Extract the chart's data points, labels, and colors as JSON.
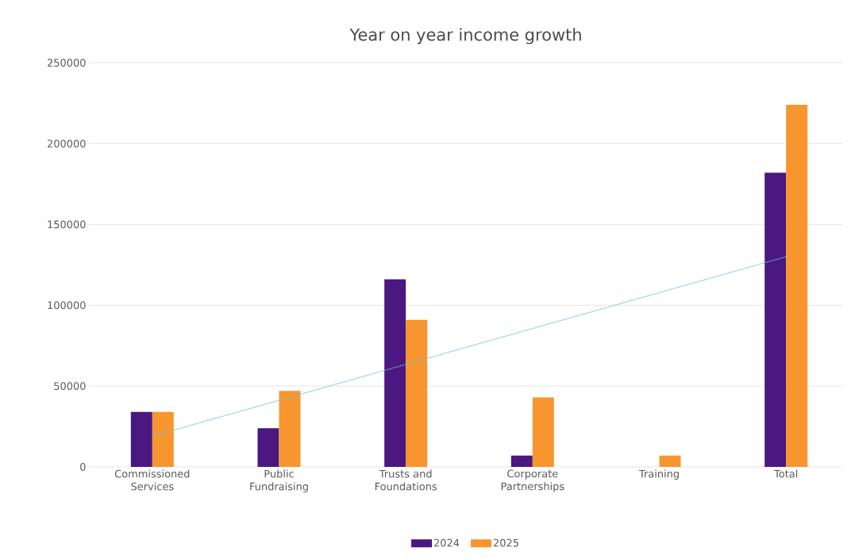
{
  "chart_data": {
    "type": "bar",
    "title": "Year on year income growth",
    "categories": [
      "Commissioned Services",
      "Public Fundraising",
      "Trusts and Foundations",
      "Corporate Partnerships",
      "Training",
      "Total"
    ],
    "series": [
      {
        "name": "2024",
        "color": "#4b1780",
        "values": [
          34000,
          24000,
          116000,
          7000,
          0,
          182000
        ]
      },
      {
        "name": "2025",
        "color": "#f7962f",
        "values": [
          34000,
          47000,
          91000,
          43000,
          7000,
          224000
        ]
      },
      {
        "type": "line",
        "color": "#6fc3c3",
        "line_style": "dotted",
        "values": [
          19000,
          41200,
          63400,
          85600,
          107800,
          130000
        ]
      }
    ],
    "ylim": [
      0,
      250000
    ],
    "yticks": [
      0,
      50000,
      100000,
      150000,
      200000,
      250000
    ],
    "grid": "y",
    "legend": "bottom"
  }
}
